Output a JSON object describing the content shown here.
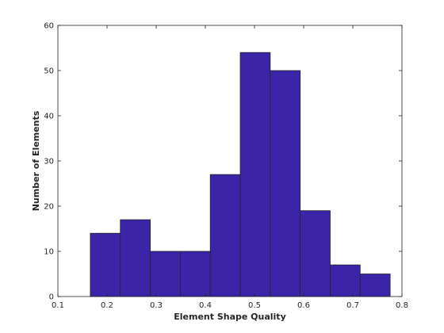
{
  "chart_data": {
    "type": "bar",
    "subtype": "histogram",
    "xlabel": "Element Shape Quality",
    "ylabel": "Number of Elements",
    "xlim": [
      0.1,
      0.8
    ],
    "ylim": [
      0,
      60
    ],
    "xticks": [
      "0.1",
      "0.2",
      "0.3",
      "0.4",
      "0.5",
      "0.6",
      "0.7",
      "0.8"
    ],
    "yticks": [
      "0",
      "10",
      "20",
      "30",
      "40",
      "50",
      "60"
    ],
    "bin_edges": [
      0.166,
      0.227,
      0.288,
      0.349,
      0.41,
      0.471,
      0.532,
      0.593,
      0.654,
      0.715,
      0.776
    ],
    "values": [
      14,
      17,
      10,
      10,
      27,
      54,
      50,
      19,
      7,
      5
    ],
    "bar_color": "#3b24a8",
    "edge_color": "#262626",
    "grid": false
  }
}
